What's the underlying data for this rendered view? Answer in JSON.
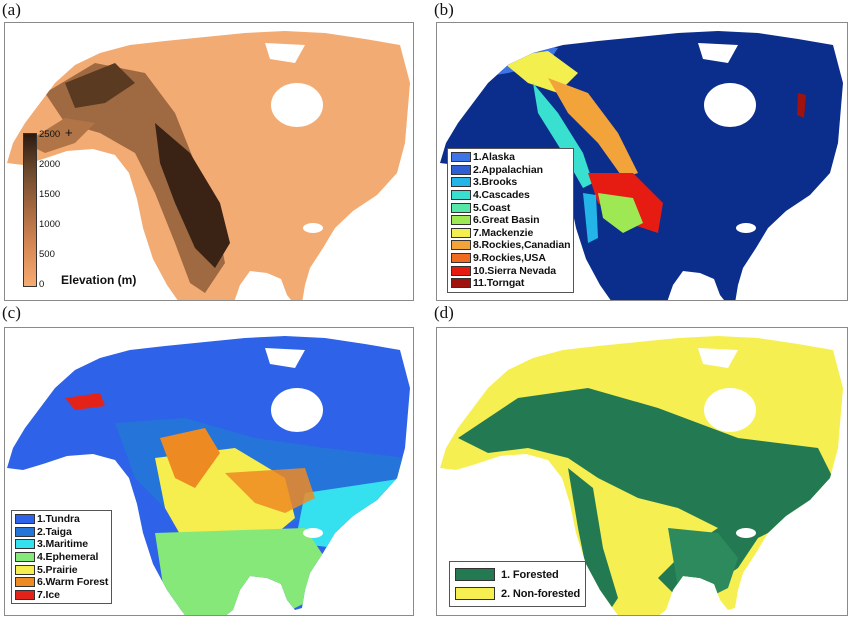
{
  "panels": {
    "a": {
      "label": "(a)",
      "colorbar": {
        "title": "Elevation (m)",
        "plus": "+",
        "ticks": [
          "2500",
          "2000",
          "1500",
          "1000",
          "500",
          "0"
        ],
        "min": 0,
        "max": 2500,
        "colors": [
          "#f6ab70",
          "#d98a56",
          "#a86a42",
          "#6e4a2e",
          "#2c1a10"
        ]
      }
    },
    "b": {
      "label": "(b)",
      "background_color": "#0b2d8b",
      "legend": [
        {
          "label": "1.Alaska",
          "color": "#3d74e6"
        },
        {
          "label": "2.Appalachian",
          "color": "#2f5fd3"
        },
        {
          "label": "3.Brooks",
          "color": "#23b4e8"
        },
        {
          "label": "4.Cascades",
          "color": "#39e0d0"
        },
        {
          "label": "5.Coast",
          "color": "#56e8a8"
        },
        {
          "label": "6.Great Basin",
          "color": "#9ee854"
        },
        {
          "label": "7.Mackenzie",
          "color": "#f3ef4f"
        },
        {
          "label": "8.Rockies,Canadian",
          "color": "#f2a33a"
        },
        {
          "label": "9.Rockies,USA",
          "color": "#f06a1f"
        },
        {
          "label": "10.Sierra Nevada",
          "color": "#e61b12"
        },
        {
          "label": "11.Torngat",
          "color": "#a0120d"
        }
      ]
    },
    "c": {
      "label": "(c)",
      "legend": [
        {
          "label": "1.Tundra",
          "color": "#2e62e8"
        },
        {
          "label": "2.Taiga",
          "color": "#2574d9"
        },
        {
          "label": "3.Maritime",
          "color": "#35e0ef"
        },
        {
          "label": "4.Ephemeral",
          "color": "#86e879"
        },
        {
          "label": "5.Prairie",
          "color": "#f5ee4e"
        },
        {
          "label": "6.Warm Forest",
          "color": "#ee8a22"
        },
        {
          "label": "7.Ice",
          "color": "#e3231a"
        }
      ]
    },
    "d": {
      "label": "(d)",
      "legend": [
        {
          "label": "1. Forested",
          "color": "#237a52"
        },
        {
          "label": "2. Non-forested",
          "color": "#f6ef52"
        }
      ]
    }
  }
}
